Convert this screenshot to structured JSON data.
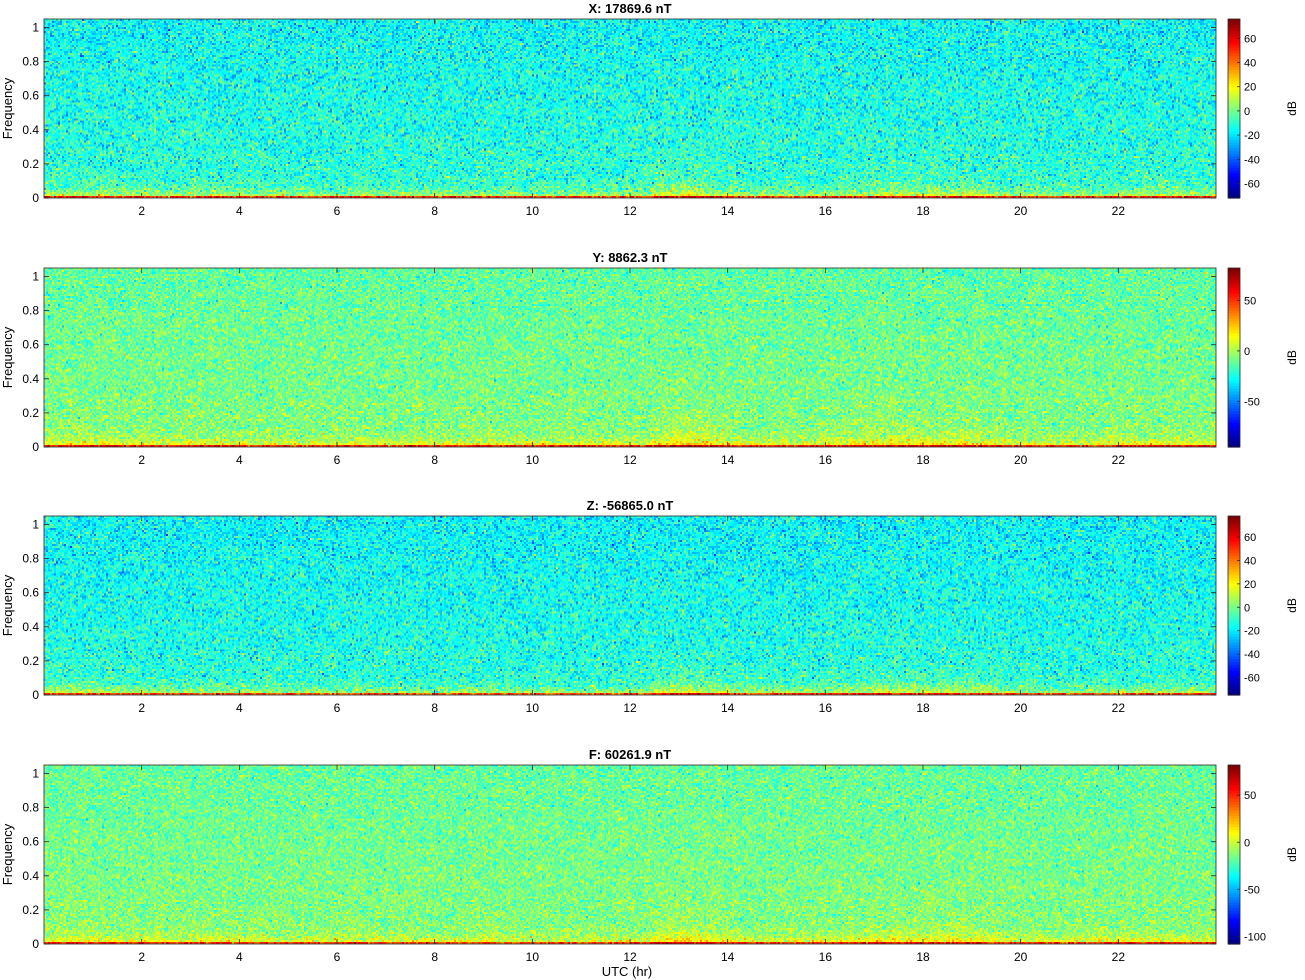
{
  "figure": {
    "xlabel": "UTC (hr)"
  },
  "chart_data": [
    {
      "type": "heatmap",
      "title": "X: 17869.6 nT",
      "ylabel": "Frequency",
      "xlim": [
        0,
        24
      ],
      "ylim": [
        0,
        1.05
      ],
      "xticks": [
        2,
        4,
        6,
        8,
        10,
        12,
        14,
        16,
        18,
        20,
        22
      ],
      "yticks": [
        0,
        0.2,
        0.4,
        0.6,
        0.8,
        1
      ],
      "colorbar": {
        "label": "dB",
        "range": [
          -72,
          76
        ],
        "ticks": [
          -60,
          -40,
          -20,
          0,
          20,
          40,
          60
        ]
      },
      "background_level_db": -16,
      "colormap": "jet"
    },
    {
      "type": "heatmap",
      "title": "Y: 8862.3 nT",
      "ylabel": "Frequency",
      "xlim": [
        0,
        24
      ],
      "ylim": [
        0,
        1.05
      ],
      "xticks": [
        2,
        4,
        6,
        8,
        10,
        12,
        14,
        16,
        18,
        20,
        22
      ],
      "yticks": [
        0,
        0.2,
        0.4,
        0.6,
        0.8,
        1
      ],
      "colorbar": {
        "label": "dB",
        "range": [
          -95,
          82
        ],
        "ticks": [
          -50,
          0,
          50
        ]
      },
      "background_level_db": -12,
      "colormap": "jet"
    },
    {
      "type": "heatmap",
      "title": "Z: -56865.0 nT",
      "ylabel": "Frequency",
      "xlim": [
        0,
        24
      ],
      "ylim": [
        0,
        1.05
      ],
      "xticks": [
        2,
        4,
        6,
        8,
        10,
        12,
        14,
        16,
        18,
        20,
        22
      ],
      "yticks": [
        0,
        0.2,
        0.4,
        0.6,
        0.8,
        1
      ],
      "colorbar": {
        "label": "dB",
        "range": [
          -75,
          78
        ],
        "ticks": [
          -60,
          -40,
          -20,
          0,
          20,
          40,
          60
        ]
      },
      "background_level_db": -18,
      "colormap": "jet"
    },
    {
      "type": "heatmap",
      "title": "F: 60261.9 nT",
      "ylabel": "Frequency",
      "xlim": [
        0,
        24
      ],
      "ylim": [
        0,
        1.05
      ],
      "xticks": [
        2,
        4,
        6,
        8,
        10,
        12,
        14,
        16,
        18,
        20,
        22
      ],
      "yticks": [
        0,
        0.2,
        0.4,
        0.6,
        0.8,
        1
      ],
      "colorbar": {
        "label": "dB",
        "range": [
          -108,
          82
        ],
        "ticks": [
          -100,
          -50,
          0,
          50
        ]
      },
      "background_level_db": -18,
      "colormap": "jet"
    }
  ]
}
